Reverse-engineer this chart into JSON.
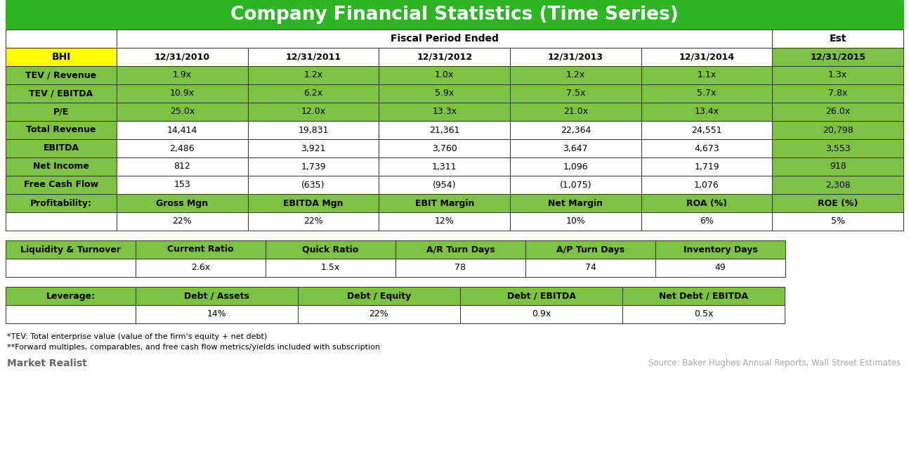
{
  "title": "Company Financial Statistics (Time Series)",
  "title_bg": "#2DB526",
  "title_color": "#FFFFFF",
  "green_color": "#7DC242",
  "yellow_color": "#FFFF00",
  "white_color": "#FFFFFF",
  "black_color": "#000000",
  "bg_color": "#F0F0F0",
  "date_row": [
    "BHI",
    "12/31/2010",
    "12/31/2011",
    "12/31/2012",
    "12/31/2013",
    "12/31/2014",
    "12/31/2015"
  ],
  "main_rows": [
    [
      "TEV / Revenue",
      "1.9x",
      "1.2x",
      "1.0x",
      "1.2x",
      "1.1x",
      "1.3x"
    ],
    [
      "TEV / EBITDA",
      "10.9x",
      "6.2x",
      "5.9x",
      "7.5x",
      "5.7x",
      "7.8x"
    ],
    [
      "P/E",
      "25.0x",
      "12.0x",
      "13.3x",
      "21.0x",
      "13.4x",
      "26.0x"
    ],
    [
      "Total Revenue",
      "14,414",
      "19,831",
      "21,361",
      "22,364",
      "24,551",
      "20,798"
    ],
    [
      "EBITDA",
      "2,486",
      "3,921",
      "3,760",
      "3,647",
      "4,673",
      "3,553"
    ],
    [
      "Net Income",
      "812",
      "1,739",
      "1,311",
      "1,096",
      "1,719",
      "918"
    ],
    [
      "Free Cash Flow",
      "153",
      "(635)",
      "(954)",
      "(1,075)",
      "1,076",
      "2,308"
    ]
  ],
  "profit_header": [
    "Profitability:",
    "Gross Mgn",
    "EBITDA Mgn",
    "EBIT Margin",
    "Net Margin",
    "ROA (%)",
    "ROE (%)"
  ],
  "profit_data": [
    "",
    "22%",
    "22%",
    "12%",
    "10%",
    "6%",
    "5%"
  ],
  "liquidity_header": [
    "Liquidity & Turnover",
    "Current Ratio",
    "Quick Ratio",
    "A/R Turn Days",
    "A/P Turn Days",
    "Inventory Days"
  ],
  "liquidity_data": [
    "",
    "2.6x",
    "1.5x",
    "78",
    "74",
    "49"
  ],
  "leverage_header": [
    "Leverage:",
    "Debt / Assets",
    "Debt / Equity",
    "Debt / EBITDA",
    "Net Debt / EBITDA"
  ],
  "leverage_data": [
    "",
    "14%",
    "22%",
    "0.9x",
    "0.5x"
  ],
  "footnote1": "*TEV: Total enterprise value (value of the firm's equity + net debt)",
  "footnote2": "**Forward multiples, comparables, and free cash flow metrics/yields included with subscription",
  "source": "Source: Baker Hughes Annual Reports, Wall Street Estimates",
  "watermark": "Market Realist"
}
